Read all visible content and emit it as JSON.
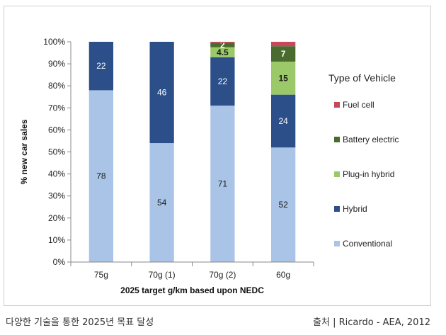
{
  "caption": {
    "left": "다양한 기술을 통한 2025년 목표 달성",
    "right": "출처 | Ricardo - AEA, 2012"
  },
  "chart_data": {
    "type": "bar",
    "stacked": true,
    "title": "",
    "xlabel": "2025 target g/km based upon NEDC",
    "ylabel": "% new car sales",
    "ylim": [
      0,
      100
    ],
    "yticks": [
      "0%",
      "10%",
      "20%",
      "30%",
      "40%",
      "50%",
      "60%",
      "70%",
      "80%",
      "90%",
      "100%"
    ],
    "grid": false,
    "categories": [
      "75g",
      "70g (1)",
      "70g (2)",
      "60g"
    ],
    "legend_title": "Type of Vehicle",
    "legend_position": "right",
    "legend_order": [
      "Fuel cell",
      "Battery electric",
      "Plug-in hybrid",
      "Hybrid",
      "Conventional"
    ],
    "series": [
      {
        "name": "Conventional",
        "color": "#a9c4e6",
        "values": [
          78,
          54,
          71,
          52
        ],
        "labels": [
          "78",
          "54",
          "71",
          "52"
        ]
      },
      {
        "name": "Hybrid",
        "color": "#2c4f8a",
        "values": [
          22,
          46,
          22,
          24
        ],
        "labels": [
          "22",
          "46",
          "22",
          "24"
        ]
      },
      {
        "name": "Plug-in hybrid",
        "color": "#9bc96a",
        "values": [
          0,
          0,
          4.5,
          15
        ],
        "labels": [
          "",
          "",
          "4.5",
          "15"
        ]
      },
      {
        "name": "Battery electric",
        "color": "#4a6b2e",
        "values": [
          0,
          0,
          2,
          7
        ],
        "labels": [
          "",
          "",
          "2",
          "7"
        ]
      },
      {
        "name": "Fuel cell",
        "color": "#c8485a",
        "values": [
          0,
          0,
          0.5,
          2
        ],
        "labels": [
          "",
          "",
          "",
          ""
        ]
      }
    ]
  }
}
